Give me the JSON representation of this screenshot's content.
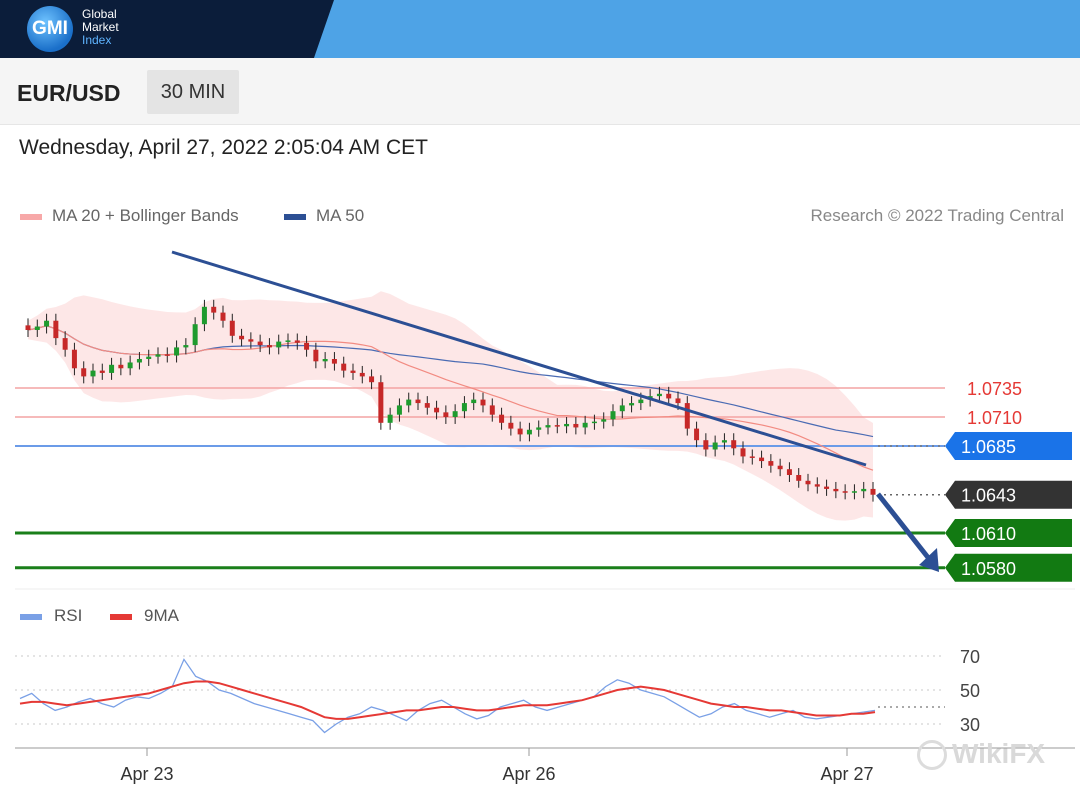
{
  "header": {
    "logo_initials": "GMI",
    "logo_line1": "Global",
    "logo_line2": "Market",
    "logo_line3": "Index"
  },
  "toolbar": {
    "symbol": "EUR/USD",
    "timeframe": "30 MIN"
  },
  "datetime": "Wednesday, April 27, 2022 2:05:04 AM CET",
  "research": "Research © 2022 Trading Central",
  "legend": {
    "ma20": "MA 20 + Bollinger Bands",
    "ma50": "MA 50"
  },
  "rsi_legend": {
    "rsi": "RSI",
    "ma9": "9MA"
  },
  "watermark": "WikiFX",
  "colors": {
    "blue_top": "#4ea3e6",
    "navy_top": "#0b1d3a",
    "resistance": "#f08080",
    "pivot": "#1a73e8",
    "support": "#1a7f1a",
    "current": "#333333",
    "trendline": "#2c4f94",
    "ma20": "#f28b82",
    "ma50": "#4a6bb3",
    "bollinger": "#fde3e3",
    "rsi": "#7aa0e6",
    "rsi_ma": "#e53935"
  },
  "chart_data": [
    {
      "type": "candlestick",
      "title": "EUR/USD 30 MIN",
      "x_ticks": [
        "Apr 23",
        "Apr 26",
        "Apr 27"
      ],
      "ylim": [
        1.055,
        1.0825
      ],
      "close": [
        1.0785,
        1.0788,
        1.0793,
        1.0778,
        1.0768,
        1.0752,
        1.0745,
        1.075,
        1.0748,
        1.0755,
        1.0752,
        1.0757,
        1.076,
        1.0762,
        1.0764,
        1.0763,
        1.077,
        1.0772,
        1.079,
        1.0805,
        1.08,
        1.0793,
        1.078,
        1.0777,
        1.0775,
        1.0772,
        1.077,
        1.0775,
        1.0776,
        1.0774,
        1.0768,
        1.0758,
        1.076,
        1.0756,
        1.075,
        1.0748,
        1.0745,
        1.074,
        1.0705,
        1.0712,
        1.072,
        1.0725,
        1.0722,
        1.0718,
        1.0714,
        1.071,
        1.0715,
        1.0722,
        1.0725,
        1.072,
        1.0712,
        1.0705,
        1.07,
        1.0695,
        1.0699,
        1.0701,
        1.0703,
        1.0702,
        1.0704,
        1.0701,
        1.0705,
        1.0706,
        1.0708,
        1.0715,
        1.072,
        1.0722,
        1.0725,
        1.0728,
        1.073,
        1.0726,
        1.0722,
        1.07,
        1.069,
        1.0682,
        1.0688,
        1.069,
        1.0683,
        1.0676,
        1.0675,
        1.0672,
        1.0668,
        1.0665,
        1.066,
        1.0655,
        1.0652,
        1.065,
        1.0648,
        1.0646,
        1.0645,
        1.0646,
        1.0648,
        1.0643
      ],
      "levels": [
        {
          "label": "1.0735",
          "value": 1.0735,
          "kind": "resistance"
        },
        {
          "label": "1.0710",
          "value": 1.071,
          "kind": "resistance"
        },
        {
          "label": "1.0685",
          "value": 1.0685,
          "kind": "pivot"
        },
        {
          "label": "1.0643",
          "value": 1.0643,
          "kind": "current"
        },
        {
          "label": "1.0610",
          "value": 1.061,
          "kind": "support"
        },
        {
          "label": "1.0580",
          "value": 1.058,
          "kind": "support"
        }
      ]
    },
    {
      "type": "line",
      "title": "RSI",
      "y_ticks": [
        "70",
        "50",
        "30"
      ],
      "ylim": [
        20,
        80
      ],
      "series": [
        {
          "name": "RSI",
          "values": [
            45,
            48,
            42,
            38,
            40,
            43,
            45,
            42,
            40,
            44,
            46,
            45,
            48,
            52,
            68,
            58,
            55,
            50,
            48,
            45,
            42,
            40,
            38,
            36,
            34,
            32,
            25,
            30,
            34,
            36,
            40,
            38,
            35,
            32,
            38,
            42,
            44,
            40,
            36,
            33,
            35,
            40,
            42,
            44,
            40,
            38,
            40,
            42,
            44,
            46,
            52,
            56,
            54,
            50,
            48,
            46,
            42,
            38,
            34,
            36,
            40,
            42,
            38,
            36,
            34,
            36,
            38,
            34,
            33,
            34,
            35,
            36,
            37,
            38
          ]
        },
        {
          "name": "9MA",
          "values": [
            42,
            43,
            43,
            42,
            41,
            42,
            43,
            44,
            45,
            46,
            47,
            48,
            50,
            52,
            54,
            55,
            55,
            54,
            52,
            50,
            48,
            46,
            44,
            42,
            40,
            37,
            34,
            33,
            33,
            34,
            35,
            36,
            37,
            38,
            38,
            39,
            40,
            40,
            39,
            38,
            38,
            39,
            40,
            41,
            41,
            41,
            42,
            43,
            44,
            46,
            48,
            50,
            51,
            52,
            51,
            50,
            48,
            46,
            44,
            42,
            41,
            40,
            40,
            39,
            38,
            38,
            37,
            36,
            35,
            35,
            35,
            36,
            36,
            37
          ]
        }
      ]
    }
  ]
}
